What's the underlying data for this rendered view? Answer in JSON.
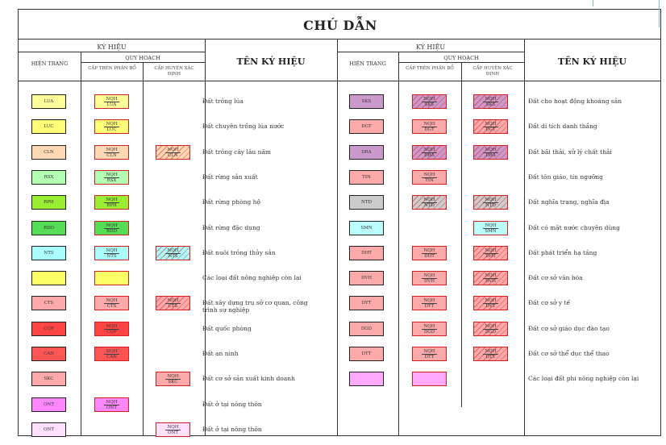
{
  "title": "CHÚ DẪN",
  "headers": {
    "ky_hieu": "KÝ HIỆU",
    "hien_trang": "HIỆN TRẠNG",
    "quy_hoach": "QUY HOẠCH",
    "cap_tren_phan_bo": "CẤP TRÊN PHÂN BỔ",
    "cap_huyen_xac_dinh": "CẤP HUYỆN XÁC ĐỊNH",
    "ten_ky_hieu": "TÊN KÝ HIỆU",
    "ky_hieu_right": "KÝ HIỆU",
    "hien_trang_right": "HIỆN TRẠNG",
    "quy_hoach_right": "QUY HOẠCH",
    "cap_tren_right": "CẤP TRÊN PHÂN BỔ",
    "cap_huyen_right": "CẤP HUYỆN XÁC ĐỊNH",
    "ten_ky_hieu_right": "TÊN KÝ HIỆU"
  },
  "left_rows": [
    {
      "ht_code": "LUA",
      "ht_color": "#ffff99",
      "ct": {
        "top": "NQH",
        "bot": "LUA",
        "color": "#ffff99",
        "hatch": false
      },
      "ch": null,
      "name": "Đất trồng lúa"
    },
    {
      "ht_code": "LUC",
      "ht_color": "#ffff77",
      "ct": {
        "top": "NQH",
        "bot": "LUC",
        "color": "#ffff77",
        "hatch": false
      },
      "ch": null,
      "name": "Đất chuyên trồng lúa nước"
    },
    {
      "ht_code": "CLN",
      "ht_color": "#ffd9b3",
      "ct": {
        "top": "NQH",
        "bot": "CLN",
        "color": "#ffd9b3",
        "hatch": false
      },
      "ch": {
        "top": "NQH",
        "bot": "CLN",
        "color": "#ffd9b3",
        "hatch": true
      },
      "name": "Đất trồng cây lâu năm"
    },
    {
      "ht_code": "RSX",
      "ht_color": "#b3ffb3",
      "ct": {
        "top": "NQH",
        "bot": "RSX",
        "color": "#b3ffb3",
        "hatch": false
      },
      "ch": null,
      "name": "Đất rừng sản xuất"
    },
    {
      "ht_code": "RPH",
      "ht_color": "#99ee33",
      "ct": {
        "top": "NQH",
        "bot": "RPH",
        "color": "#99ee33",
        "hatch": false
      },
      "ch": null,
      "name": "Đất rừng phòng hộ"
    },
    {
      "ht_code": "RDD",
      "ht_color": "#55dd55",
      "ct": {
        "top": "NQH",
        "bot": "RDD",
        "color": "#55dd55",
        "hatch": false
      },
      "ch": null,
      "name": "Đất rừng đặc dụng"
    },
    {
      "ht_code": "NTS",
      "ht_color": "#aaffff",
      "ct": {
        "top": "NQH",
        "bot": "NTS",
        "color": "#aaffff",
        "hatch": false
      },
      "ch": {
        "top": "NQH",
        "bot": "NTS",
        "color": "#aaffff",
        "hatch": true
      },
      "name": "Đất nuôi trồng thủy sản"
    },
    {
      "ht_code": "",
      "ht_color": "#ffff66",
      "ct": {
        "top": "",
        "bot": "",
        "color": "#ffff66",
        "hatch": false
      },
      "ch": null,
      "name": "Các loại đất nông nghiệp còn lại"
    },
    {
      "ht_code": "CTS",
      "ht_color": "#ffaaaa",
      "ct": {
        "top": "NQH",
        "bot": "CTS",
        "color": "#ffaaaa",
        "hatch": false
      },
      "ch": {
        "top": "NQH",
        "bot": "CTS",
        "color": "#ffaaaa",
        "hatch": true
      },
      "name": "Đất xây dựng trụ sở cơ quan, công trình sự nghiệp"
    },
    {
      "ht_code": "CQP",
      "ht_color": "#ff4444",
      "ct": {
        "top": "NQH",
        "bot": "CQP",
        "color": "#ff4444",
        "hatch": false
      },
      "ch": null,
      "name": "Đất quốc phòng"
    },
    {
      "ht_code": "CAN",
      "ht_color": "#ff5555",
      "ct": {
        "top": "NQH",
        "bot": "CAN",
        "color": "#ff5555",
        "hatch": false
      },
      "ch": null,
      "name": "Đất an ninh"
    },
    {
      "ht_code": "SKC",
      "ht_color": "#ffaaaa",
      "ct": null,
      "ch": {
        "top": "NQH",
        "bot": "SKC",
        "color": "#ffaaaa",
        "hatch": false
      },
      "name": "Đất cơ sở sản xuất kinh doanh"
    },
    {
      "ht_code": "ONT",
      "ht_color": "#ff88ff",
      "ct": {
        "top": "NQH",
        "bot": "ONT",
        "color": "#ff88ff",
        "hatch": false
      },
      "ch": null,
      "name": "Đất ở tại nông thôn"
    },
    {
      "ht_code": "ONT",
      "ht_color": "#ffe0ff",
      "ct": null,
      "ch": {
        "top": "NQH",
        "bot": "ONT",
        "color": "#ffe0ff",
        "hatch": false
      },
      "name": "Đất ở tại nông thôn"
    }
  ],
  "right_rows": [
    {
      "ht_code": "SKS",
      "ht_color": "#cc99cc",
      "ct": {
        "top": "NQH",
        "bot": "SKS",
        "color": "#cc99cc",
        "hatch": true
      },
      "ch": {
        "top": "NQH",
        "bot": "SKS",
        "color": "#cc99cc",
        "hatch": true
      },
      "name": "Đất cho hoạt động khoáng sản"
    },
    {
      "ht_code": "DGT",
      "ht_color": "#ffaaaa",
      "ct": {
        "top": "NQH",
        "bot": "DGT",
        "color": "#ffaaaa",
        "hatch": false
      },
      "ch": {
        "top": "NQH",
        "bot": "DGT",
        "color": "#ffaaaa",
        "hatch": true
      },
      "name": "Đất di tích danh thắng"
    },
    {
      "ht_code": "DRA",
      "ht_color": "#cc99cc",
      "ct": {
        "top": "NQH",
        "bot": "DRA",
        "color": "#cc99cc",
        "hatch": true
      },
      "ch": {
        "top": "NQH",
        "bot": "DRA",
        "color": "#cc99cc",
        "hatch": true
      },
      "name": "Đất bãi thải, xử lý chất thải"
    },
    {
      "ht_code": "TIN",
      "ht_color": "#ffaaaa",
      "ct": {
        "top": "NQH",
        "bot": "TIN",
        "color": "#ffaaaa",
        "hatch": false
      },
      "ch": null,
      "name": "Đất tôn giáo, tín ngưỡng"
    },
    {
      "ht_code": "NTD",
      "ht_color": "#cccccc",
      "ct": {
        "top": "NQH",
        "bot": "NTD",
        "color": "#cccccc",
        "hatch": true
      },
      "ch": {
        "top": "NQH",
        "bot": "NTD",
        "color": "#cccccc",
        "hatch": true
      },
      "name": "Đất nghĩa trang, nghĩa địa"
    },
    {
      "ht_code": "SMN",
      "ht_color": "#bbffff",
      "ct": null,
      "ch": {
        "top": "NQH",
        "bot": "SMN",
        "color": "#bbffff",
        "hatch": false
      },
      "name": "Đất có mặt nước chuyên dùng"
    },
    {
      "ht_code": "DHT",
      "ht_color": "#ffaaaa",
      "ct": {
        "top": "NQH",
        "bot": "DHT",
        "color": "#ffaaaa",
        "hatch": false
      },
      "ch": {
        "top": "NQH",
        "bot": "DHT",
        "color": "#ffaaaa",
        "hatch": true
      },
      "name": "Đất phát triển hạ tầng"
    },
    {
      "ht_code": "DVH",
      "ht_color": "#ffaaaa",
      "ct": {
        "top": "NQH",
        "bot": "DVH",
        "color": "#ffaaaa",
        "hatch": false
      },
      "ch": {
        "top": "NQH",
        "bot": "DVH",
        "color": "#ffaaaa",
        "hatch": true
      },
      "name": "Đất cơ sở văn hóa"
    },
    {
      "ht_code": "DYT",
      "ht_color": "#ffaaaa",
      "ct": {
        "top": "NQH",
        "bot": "DYT",
        "color": "#ffaaaa",
        "hatch": false
      },
      "ch": {
        "top": "NQH",
        "bot": "DYT",
        "color": "#ffaaaa",
        "hatch": true
      },
      "name": "Đất cơ sở y tế"
    },
    {
      "ht_code": "DGD",
      "ht_color": "#ffaaaa",
      "ct": {
        "top": "NQH",
        "bot": "DGD",
        "color": "#ffaaaa",
        "hatch": false
      },
      "ch": {
        "top": "NQH",
        "bot": "DGD",
        "color": "#ffaaaa",
        "hatch": true
      },
      "name": "Đất cơ sở giáo dục đào tạo"
    },
    {
      "ht_code": "DTT",
      "ht_color": "#ffaaaa",
      "ct": {
        "top": "NQH",
        "bot": "DTT",
        "color": "#ffaaaa",
        "hatch": false
      },
      "ch": {
        "top": "NQH",
        "bot": "DTT",
        "color": "#ffaaaa",
        "hatch": true
      },
      "name": "Đất cơ sở thể dục thể thao"
    },
    {
      "ht_code": "",
      "ht_color": "#ffaaff",
      "ct": {
        "top": "",
        "bot": "",
        "color": "#ffaaff",
        "hatch": false
      },
      "ch": null,
      "name": "Các loại đất phi nông nghiệp còn lại"
    }
  ]
}
